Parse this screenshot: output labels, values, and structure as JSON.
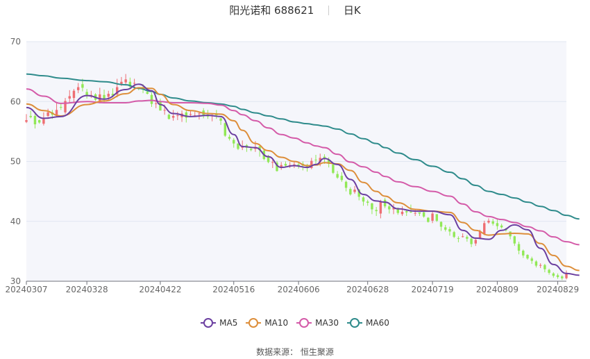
{
  "title": {
    "name": "阳光诺和 688621",
    "period": "日K"
  },
  "source": "数据来源：  恒生聚源",
  "colors": {
    "up": "#ee6e73",
    "down": "#91e856",
    "grid": "#e0e6f1",
    "plotbg": "#f5f6fb",
    "MA5": "#6b3fa0",
    "MA10": "#dd8e3a",
    "MA30": "#d45aa8",
    "MA60": "#2e8b8b"
  },
  "chart_data": {
    "type": "candlestick",
    "ylim": [
      30,
      70
    ],
    "yticks": [
      "30",
      "40",
      "50",
      "60",
      "70"
    ],
    "xticks": [
      {
        "label": "20240307",
        "index": 0
      },
      {
        "label": "20240328",
        "index": 14
      },
      {
        "label": "20240422",
        "index": 31
      },
      {
        "label": "20240516",
        "index": 48
      },
      {
        "label": "20240606",
        "index": 63
      },
      {
        "label": "20240628",
        "index": 79
      },
      {
        "label": "20240719",
        "index": 94
      },
      {
        "label": "20240809",
        "index": 109
      },
      {
        "label": "20240829",
        "index": 123
      }
    ],
    "legend": [
      {
        "name": "MA5",
        "color": "#6b3fa0"
      },
      {
        "name": "MA10",
        "color": "#dd8e3a"
      },
      {
        "name": "MA30",
        "color": "#d45aa8"
      },
      {
        "name": "MA60",
        "color": "#2e8b8b"
      }
    ],
    "ma": {
      "MA5": [
        [
          0,
          59
        ],
        [
          4,
          57.2
        ],
        [
          8,
          57.5
        ],
        [
          14,
          61
        ],
        [
          18,
          60.4
        ],
        [
          23,
          62
        ],
        [
          26,
          62.9
        ],
        [
          29,
          61.8
        ],
        [
          31,
          59.5
        ],
        [
          34,
          58
        ],
        [
          38,
          57.5
        ],
        [
          42,
          57.7
        ],
        [
          45,
          57.5
        ],
        [
          48,
          54.5
        ],
        [
          50,
          52.5
        ],
        [
          53,
          52.3
        ],
        [
          56,
          50.8
        ],
        [
          59,
          49
        ],
        [
          62,
          49.3
        ],
        [
          65,
          49
        ],
        [
          67,
          49.5
        ],
        [
          69,
          50.5
        ],
        [
          72,
          49.5
        ],
        [
          75,
          47
        ],
        [
          78,
          44.5
        ],
        [
          81,
          43.4
        ],
        [
          83,
          43.2
        ],
        [
          86,
          42.1
        ],
        [
          90,
          41.7
        ],
        [
          94,
          41.7
        ],
        [
          98,
          41.1
        ],
        [
          101,
          38.5
        ],
        [
          104,
          37.2
        ],
        [
          107,
          37
        ],
        [
          110,
          38.5
        ],
        [
          113,
          39.4
        ],
        [
          116,
          38.6
        ],
        [
          119,
          35.5
        ],
        [
          122,
          32.8
        ],
        [
          125,
          31.3
        ],
        [
          128,
          31
        ]
      ],
      "MA10": [
        [
          0,
          59.6
        ],
        [
          4,
          58.5
        ],
        [
          8,
          57.6
        ],
        [
          14,
          59.5
        ],
        [
          18,
          60.1
        ],
        [
          23,
          61.3
        ],
        [
          26,
          62.3
        ],
        [
          29,
          62.2
        ],
        [
          31,
          61.2
        ],
        [
          34,
          59.5
        ],
        [
          38,
          58.5
        ],
        [
          42,
          58
        ],
        [
          45,
          57.9
        ],
        [
          48,
          56.8
        ],
        [
          50,
          55.2
        ],
        [
          53,
          53
        ],
        [
          56,
          51.8
        ],
        [
          59,
          50.7
        ],
        [
          62,
          50
        ],
        [
          65,
          49.3
        ],
        [
          67,
          49.4
        ],
        [
          69,
          49.8
        ],
        [
          72,
          49.6
        ],
        [
          75,
          48.5
        ],
        [
          78,
          46.5
        ],
        [
          81,
          45
        ],
        [
          83,
          44.2
        ],
        [
          86,
          43.1
        ],
        [
          90,
          42
        ],
        [
          94,
          41.7
        ],
        [
          98,
          41.5
        ],
        [
          101,
          39.8
        ],
        [
          104,
          38.5
        ],
        [
          107,
          37.7
        ],
        [
          110,
          37.9
        ],
        [
          113,
          38
        ],
        [
          116,
          37.9
        ],
        [
          119,
          36.3
        ],
        [
          122,
          34.3
        ],
        [
          125,
          32.5
        ],
        [
          128,
          31.8
        ]
      ],
      "MA30": [
        [
          0,
          62.1
        ],
        [
          4,
          60.9
        ],
        [
          8,
          59.7
        ],
        [
          14,
          60
        ],
        [
          18,
          59.8
        ],
        [
          23,
          59.8
        ],
        [
          26,
          60.1
        ],
        [
          29,
          60.2
        ],
        [
          31,
          60
        ],
        [
          34,
          59.8
        ],
        [
          38,
          59.8
        ],
        [
          42,
          59.7
        ],
        [
          45,
          59.4
        ],
        [
          48,
          58.5
        ],
        [
          50,
          57.8
        ],
        [
          53,
          56.8
        ],
        [
          56,
          55.6
        ],
        [
          59,
          54.5
        ],
        [
          62,
          53.9
        ],
        [
          65,
          53.1
        ],
        [
          67,
          52.6
        ],
        [
          69,
          52.3
        ],
        [
          72,
          51.2
        ],
        [
          75,
          49.9
        ],
        [
          78,
          49.1
        ],
        [
          81,
          48.2
        ],
        [
          83,
          47.5
        ],
        [
          86,
          46.6
        ],
        [
          90,
          45.8
        ],
        [
          94,
          45
        ],
        [
          98,
          44.2
        ],
        [
          101,
          42.9
        ],
        [
          104,
          41.6
        ],
        [
          107,
          40.8
        ],
        [
          110,
          40.3
        ],
        [
          113,
          39.8
        ],
        [
          116,
          39.1
        ],
        [
          119,
          38.4
        ],
        [
          122,
          37.4
        ],
        [
          125,
          36.6
        ],
        [
          128,
          36.1
        ]
      ],
      "MA60": [
        [
          0,
          64.6
        ],
        [
          4,
          64.3
        ],
        [
          8,
          63.9
        ],
        [
          14,
          63.5
        ],
        [
          18,
          63.3
        ],
        [
          23,
          62.8
        ],
        [
          26,
          62.2
        ],
        [
          29,
          61.7
        ],
        [
          31,
          61.2
        ],
        [
          34,
          60.6
        ],
        [
          38,
          60.1
        ],
        [
          42,
          59.8
        ],
        [
          45,
          59.6
        ],
        [
          48,
          59.2
        ],
        [
          50,
          58.7
        ],
        [
          53,
          58.1
        ],
        [
          56,
          57.6
        ],
        [
          59,
          57.1
        ],
        [
          62,
          56.6
        ],
        [
          65,
          56.3
        ],
        [
          67,
          56.1
        ],
        [
          69,
          55.9
        ],
        [
          72,
          55.4
        ],
        [
          75,
          54.6
        ],
        [
          78,
          53.8
        ],
        [
          81,
          53
        ],
        [
          83,
          52.3
        ],
        [
          86,
          51.4
        ],
        [
          90,
          50.3
        ],
        [
          94,
          49.2
        ],
        [
          98,
          48.2
        ],
        [
          101,
          47.1
        ],
        [
          104,
          46
        ],
        [
          107,
          45
        ],
        [
          110,
          44.5
        ],
        [
          113,
          43.9
        ],
        [
          116,
          43.2
        ],
        [
          119,
          42.5
        ],
        [
          122,
          41.8
        ],
        [
          125,
          41
        ],
        [
          128,
          40.4
        ]
      ]
    },
    "candles": [
      [
        56.6,
        57.9,
        56.9,
        56.4
      ],
      [
        57.6,
        58.5,
        57.4,
        57.2
      ],
      [
        57.6,
        58.1,
        56.2,
        55.5
      ],
      [
        56.9,
        57.0,
        56.5,
        56.3
      ],
      [
        56.3,
        58.2,
        57.1,
        56.0
      ],
      [
        57.6,
        58.8,
        58.2,
        57.4
      ],
      [
        58.2,
        58.6,
        57.8,
        57.1
      ],
      [
        57.6,
        59.9,
        58.6,
        57.4
      ],
      [
        59.1,
        59.6,
        59.0,
        58.6
      ],
      [
        58.2,
        60.6,
        60.1,
        57.9
      ],
      [
        60.5,
        61.9,
        60.9,
        59.7
      ],
      [
        60.6,
        62.1,
        61.8,
        59.7
      ],
      [
        61.9,
        63.1,
        62.4,
        61.4
      ],
      [
        62.9,
        63.8,
        62.3,
        61.7
      ],
      [
        61.6,
        62.1,
        60.9,
        60.5
      ],
      [
        61.0,
        61.8,
        61.1,
        60.6
      ],
      [
        61.2,
        61.4,
        60.3,
        60.1
      ],
      [
        60.1,
        62.3,
        61.2,
        59.7
      ],
      [
        61.1,
        62.0,
        60.3,
        59.8
      ],
      [
        60.8,
        61.8,
        61.3,
        60.3
      ],
      [
        61.3,
        62.2,
        61.0,
        60.7
      ],
      [
        61.2,
        63.8,
        62.4,
        60.7
      ],
      [
        62.9,
        64.1,
        63.3,
        62.6
      ],
      [
        63.2,
        64.6,
        63.7,
        62.8
      ],
      [
        63.3,
        64.0,
        62.5,
        62.1
      ],
      [
        63.0,
        63.8,
        63.1,
        61.9
      ],
      [
        62.3,
        62.4,
        62.2,
        61.9
      ],
      [
        62.2,
        62.9,
        62.0,
        61.4
      ],
      [
        61.6,
        62.2,
        61.3,
        61.2
      ],
      [
        61.1,
        61.5,
        59.6,
        59.1
      ],
      [
        59.6,
        60.7,
        59.7,
        58.9
      ],
      [
        60.0,
        60.5,
        58.5,
        58.5
      ],
      [
        58.5,
        59.5,
        58.6,
        57.8
      ],
      [
        57.8,
        58.0,
        57.1,
        57.0
      ],
      [
        57.3,
        58.6,
        57.6,
        56.8
      ],
      [
        57.6,
        58.3,
        57.7,
        56.9
      ],
      [
        57.4,
        58.5,
        58.0,
        56.6
      ],
      [
        58.2,
        58.7,
        57.3,
        56.5
      ],
      [
        57.9,
        58.5,
        57.9,
        57.5
      ],
      [
        57.7,
        58.3,
        57.7,
        57.5
      ],
      [
        57.9,
        58.2,
        58.0,
        57.0
      ],
      [
        58.5,
        58.9,
        57.6,
        57.2
      ],
      [
        57.8,
        58.6,
        57.5,
        57.1
      ],
      [
        57.6,
        57.9,
        57.7,
        56.7
      ],
      [
        57.9,
        58.6,
        57.7,
        57.1
      ],
      [
        57.2,
        57.3,
        56.8,
        56.1
      ],
      [
        56.4,
        56.5,
        54.3,
        54.1
      ],
      [
        54.1,
        54.5,
        53.8,
        53.5
      ],
      [
        53.6,
        53.9,
        53.0,
        52.3
      ],
      [
        53.0,
        53.0,
        52.1,
        51.9
      ],
      [
        52.4,
        53.5,
        52.4,
        51.9
      ],
      [
        52.7,
        52.9,
        52.3,
        51.6
      ],
      [
        52.1,
        52.3,
        51.9,
        51.7
      ],
      [
        52.1,
        53.4,
        52.3,
        51.6
      ],
      [
        52.5,
        52.8,
        51.9,
        50.8
      ],
      [
        51.8,
        52.1,
        50.4,
        50.2
      ],
      [
        50.8,
        51.1,
        49.9,
        49.7
      ],
      [
        49.8,
        50.5,
        49.9,
        48.9
      ],
      [
        49.8,
        50.1,
        48.4,
        48.3
      ],
      [
        48.9,
        49.9,
        49.4,
        48.6
      ],
      [
        49.6,
        50.0,
        49.3,
        49.0
      ],
      [
        49.3,
        49.9,
        49.4,
        48.9
      ],
      [
        49.2,
        49.9,
        49.5,
        48.9
      ],
      [
        49.5,
        49.9,
        49.2,
        48.8
      ],
      [
        49.6,
        50.0,
        49.3,
        48.5
      ],
      [
        49.4,
        49.6,
        48.9,
        48.3
      ],
      [
        48.9,
        50.6,
        50.1,
        48.7
      ],
      [
        50.3,
        51.1,
        50.2,
        49.5
      ],
      [
        49.9,
        51.3,
        50.6,
        49.2
      ],
      [
        50.8,
        51.2,
        50.6,
        49.6
      ],
      [
        50.3,
        50.7,
        49.6,
        49.0
      ],
      [
        49.5,
        49.7,
        48.1,
        47.9
      ],
      [
        47.9,
        48.4,
        47.3,
        47.1
      ],
      [
        47.6,
        48.2,
        46.9,
        46.6
      ],
      [
        46.6,
        46.8,
        45.6,
        45.0
      ],
      [
        45.4,
        45.7,
        44.5,
        44.3
      ],
      [
        44.9,
        45.9,
        45.3,
        44.6
      ],
      [
        45.3,
        45.4,
        44.1,
        43.5
      ],
      [
        44.0,
        44.2,
        43.3,
        42.6
      ],
      [
        43.3,
        43.6,
        43.1,
        42.6
      ],
      [
        43.0,
        43.1,
        42.0,
        41.2
      ],
      [
        41.9,
        42.4,
        41.7,
        40.9
      ],
      [
        41.3,
        43.6,
        43.3,
        40.5
      ],
      [
        43.6,
        43.9,
        42.5,
        42.2
      ],
      [
        42.5,
        42.9,
        42.0,
        41.3
      ],
      [
        42.0,
        42.9,
        42.2,
        41.2
      ],
      [
        42.2,
        42.3,
        41.4,
        41.1
      ],
      [
        41.2,
        42.5,
        41.6,
        40.9
      ],
      [
        41.7,
        41.9,
        41.5,
        40.9
      ],
      [
        41.6,
        42.8,
        41.5,
        41.4
      ],
      [
        41.4,
        41.9,
        41.4,
        40.9
      ],
      [
        41.5,
        41.5,
        41.3,
        40.9
      ],
      [
        41.5,
        41.7,
        40.8,
        40.6
      ],
      [
        40.6,
        40.7,
        39.9,
        39.8
      ],
      [
        40.1,
        41.6,
        41.3,
        39.7
      ],
      [
        41.2,
        41.2,
        40.1,
        39.9
      ],
      [
        39.9,
        40.0,
        39.1,
        38.4
      ],
      [
        39.0,
        39.4,
        38.6,
        38.3
      ],
      [
        38.7,
        39.1,
        38.3,
        37.6
      ],
      [
        38.2,
        38.4,
        37.4,
        37.2
      ],
      [
        37.2,
        37.5,
        37.1,
        36.5
      ],
      [
        37.4,
        38.0,
        37.5,
        37.3
      ],
      [
        37.4,
        37.7,
        37.1,
        36.6
      ],
      [
        37.1,
        37.6,
        36.2,
        35.7
      ],
      [
        36.3,
        37.2,
        36.9,
        35.9
      ],
      [
        37.2,
        38.6,
        38.3,
        37.0
      ],
      [
        37.9,
        40.1,
        39.7,
        37.7
      ],
      [
        39.8,
        40.5,
        40.1,
        39.6
      ],
      [
        40.0,
        40.4,
        39.6,
        39.3
      ],
      [
        39.7,
        40.3,
        39.2,
        38.6
      ],
      [
        39.3,
        39.6,
        39.0,
        38.8
      ],
      [
        38.8,
        38.9,
        38.5,
        38.3
      ],
      [
        38.3,
        38.3,
        37.5,
        37.0
      ],
      [
        37.5,
        37.6,
        36.3,
        35.9
      ],
      [
        36.2,
        36.6,
        35.1,
        34.5
      ],
      [
        35.1,
        35.3,
        34.3,
        33.9
      ],
      [
        34.4,
        34.5,
        33.8,
        33.6
      ],
      [
        33.8,
        34.1,
        33.4,
        32.9
      ],
      [
        33.3,
        33.5,
        32.6,
        32.3
      ],
      [
        32.6,
        33.0,
        32.7,
        32.2
      ],
      [
        32.7,
        32.9,
        32.0,
        31.5
      ],
      [
        31.9,
        32.1,
        31.4,
        31.1
      ],
      [
        31.3,
        31.5,
        30.9,
        30.6
      ],
      [
        31.0,
        31.3,
        30.7,
        30.4
      ],
      [
        30.8,
        31.0,
        30.5,
        30.2
      ],
      [
        30.5,
        31.8,
        31.3,
        30.3
      ]
    ]
  }
}
